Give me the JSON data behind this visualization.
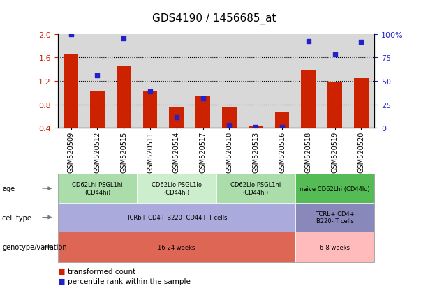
{
  "title": "GDS4190 / 1456685_at",
  "samples": [
    "GSM520509",
    "GSM520512",
    "GSM520515",
    "GSM520511",
    "GSM520514",
    "GSM520517",
    "GSM520510",
    "GSM520513",
    "GSM520516",
    "GSM520518",
    "GSM520519",
    "GSM520520"
  ],
  "red_values": [
    1.65,
    1.02,
    1.45,
    1.02,
    0.75,
    0.95,
    0.76,
    0.44,
    0.68,
    1.38,
    1.18,
    1.25
  ],
  "blue_values": [
    2.0,
    1.3,
    1.93,
    1.02,
    0.58,
    0.9,
    0.44,
    0.42,
    0.42,
    1.88,
    1.65,
    1.86
  ],
  "ylim_left": [
    0.4,
    2.0
  ],
  "ylim_right": [
    0,
    100
  ],
  "yticks_left": [
    0.4,
    0.8,
    1.2,
    1.6,
    2.0
  ],
  "yticks_right": [
    0,
    25,
    50,
    75,
    100
  ],
  "bar_color": "#cc2200",
  "dot_color": "#2222cc",
  "bg_color": "#d8d8d8",
  "genotype_groups": [
    {
      "label": "CD62Lhi PSGL1hi\n(CD44hi)",
      "start": 0,
      "end": 3,
      "color": "#aaddaa"
    },
    {
      "label": "CD62Llo PSGL1lo\n(CD44hi)",
      "start": 3,
      "end": 6,
      "color": "#cceecc"
    },
    {
      "label": "CD62Llo PSGL1hi\n(CD44hi)",
      "start": 6,
      "end": 9,
      "color": "#aaddaa"
    },
    {
      "label": "naive CD62Lhi (CD44lo)",
      "start": 9,
      "end": 12,
      "color": "#55bb55"
    }
  ],
  "cell_type_groups": [
    {
      "label": "TCRb+ CD4+ B220- CD44+ T cells",
      "start": 0,
      "end": 9,
      "color": "#aaaadd"
    },
    {
      "label": "TCRb+ CD4+\nB220- T cells",
      "start": 9,
      "end": 12,
      "color": "#8888bb"
    }
  ],
  "age_groups": [
    {
      "label": "16-24 weeks",
      "start": 0,
      "end": 9,
      "color": "#dd6655"
    },
    {
      "label": "6-8 weeks",
      "start": 9,
      "end": 12,
      "color": "#ffbbbb"
    }
  ],
  "row_labels": [
    "genotype/variation",
    "cell type",
    "age"
  ],
  "legend_items": [
    {
      "label": "transformed count",
      "color": "#cc2200"
    },
    {
      "label": "percentile rank within the sample",
      "color": "#2222cc"
    }
  ]
}
